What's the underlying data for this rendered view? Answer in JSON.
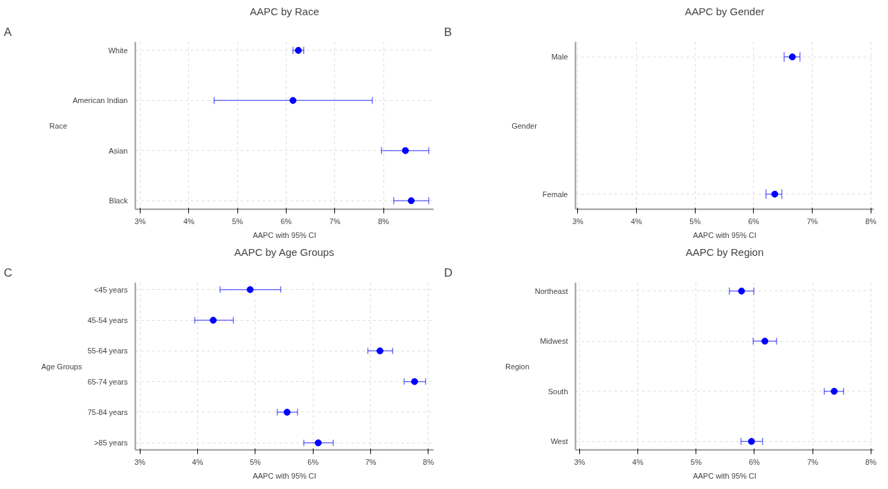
{
  "chart_data": [
    {
      "type": "scatter",
      "orientation": "horizontal",
      "title": "AAPC by Race",
      "xlabel": "AAPC with 95% CI",
      "ylabel": "Race",
      "annotations": [
        "A"
      ],
      "categories": [
        "White",
        "American Indian",
        "Asian",
        "Black"
      ],
      "values": [
        6.25,
        6.14,
        8.45,
        8.57
      ],
      "errors": [
        [
          6.14,
          6.36
        ],
        [
          4.52,
          7.77
        ],
        [
          7.96,
          8.93
        ],
        [
          8.21,
          8.93
        ]
      ],
      "color": "#0000ff",
      "marker": "circle",
      "grid": true,
      "xlim": [
        2.9,
        9.03
      ],
      "xticks": [
        {
          "value": 3,
          "label": "3%"
        },
        {
          "value": 4,
          "label": "4%"
        },
        {
          "value": 5,
          "label": "5%"
        },
        {
          "value": 6,
          "label": "6%"
        },
        {
          "value": 7,
          "label": "7%"
        },
        {
          "value": 8,
          "label": "8%"
        }
      ]
    },
    {
      "type": "scatter",
      "orientation": "horizontal",
      "title": "AAPC by Gender",
      "xlabel": "AAPC with 95% CI",
      "ylabel": "Gender",
      "annotations": [
        "B"
      ],
      "categories": [
        "Male",
        "Female"
      ],
      "values": [
        6.66,
        6.36
      ],
      "errors": [
        [
          6.52,
          6.79
        ],
        [
          6.21,
          6.48
        ]
      ],
      "color": "#0000ff",
      "marker": "circle",
      "grid": true,
      "xlim": [
        2.96,
        8.05
      ],
      "xticks": [
        {
          "value": 3,
          "label": "3%"
        },
        {
          "value": 4,
          "label": "4%"
        },
        {
          "value": 5,
          "label": "5%"
        },
        {
          "value": 6,
          "label": "6%"
        },
        {
          "value": 7,
          "label": "7%"
        },
        {
          "value": 8,
          "label": "8%"
        }
      ]
    },
    {
      "type": "scatter",
      "orientation": "horizontal",
      "title": "AAPC by Age Groups",
      "xlabel": "AAPC with 95% CI",
      "ylabel": "Age Groups",
      "annotations": [
        "C"
      ],
      "categories": [
        "<45 years",
        "45-54 years",
        "55-64 years",
        "65-74 years",
        "75-84 years",
        ">85 years"
      ],
      "values": [
        4.91,
        4.27,
        7.16,
        7.76,
        5.55,
        6.09
      ],
      "errors": [
        [
          4.39,
          5.44
        ],
        [
          3.95,
          4.62
        ],
        [
          6.95,
          7.38
        ],
        [
          7.58,
          7.95
        ],
        [
          5.38,
          5.73
        ],
        [
          5.84,
          6.35
        ]
      ],
      "color": "#0000ff",
      "marker": "circle",
      "grid": true,
      "xlim": [
        2.92,
        8.09
      ],
      "xticks": [
        {
          "value": 3,
          "label": "3%"
        },
        {
          "value": 4,
          "label": "4%"
        },
        {
          "value": 5,
          "label": "5%"
        },
        {
          "value": 6,
          "label": "6%"
        },
        {
          "value": 7,
          "label": "7%"
        },
        {
          "value": 8,
          "label": "8%"
        }
      ]
    },
    {
      "type": "scatter",
      "orientation": "horizontal",
      "title": "AAPC by Region",
      "xlabel": "AAPC with 95% CI",
      "ylabel": "Region",
      "annotations": [
        "D"
      ],
      "categories": [
        "Northeast",
        "Midwest",
        "South",
        "West"
      ],
      "values": [
        5.78,
        6.18,
        7.37,
        5.95
      ],
      "errors": [
        [
          5.57,
          5.99
        ],
        [
          5.98,
          6.38
        ],
        [
          7.2,
          7.53
        ],
        [
          5.77,
          6.14
        ]
      ],
      "color": "#0000ff",
      "marker": "circle",
      "grid": true,
      "xlim": [
        2.93,
        8.05
      ],
      "xticks": [
        {
          "value": 3,
          "label": "3%"
        },
        {
          "value": 4,
          "label": "4%"
        },
        {
          "value": 5,
          "label": "5%"
        },
        {
          "value": 6,
          "label": "6%"
        },
        {
          "value": 7,
          "label": "7%"
        },
        {
          "value": 8,
          "label": "8%"
        }
      ]
    }
  ]
}
